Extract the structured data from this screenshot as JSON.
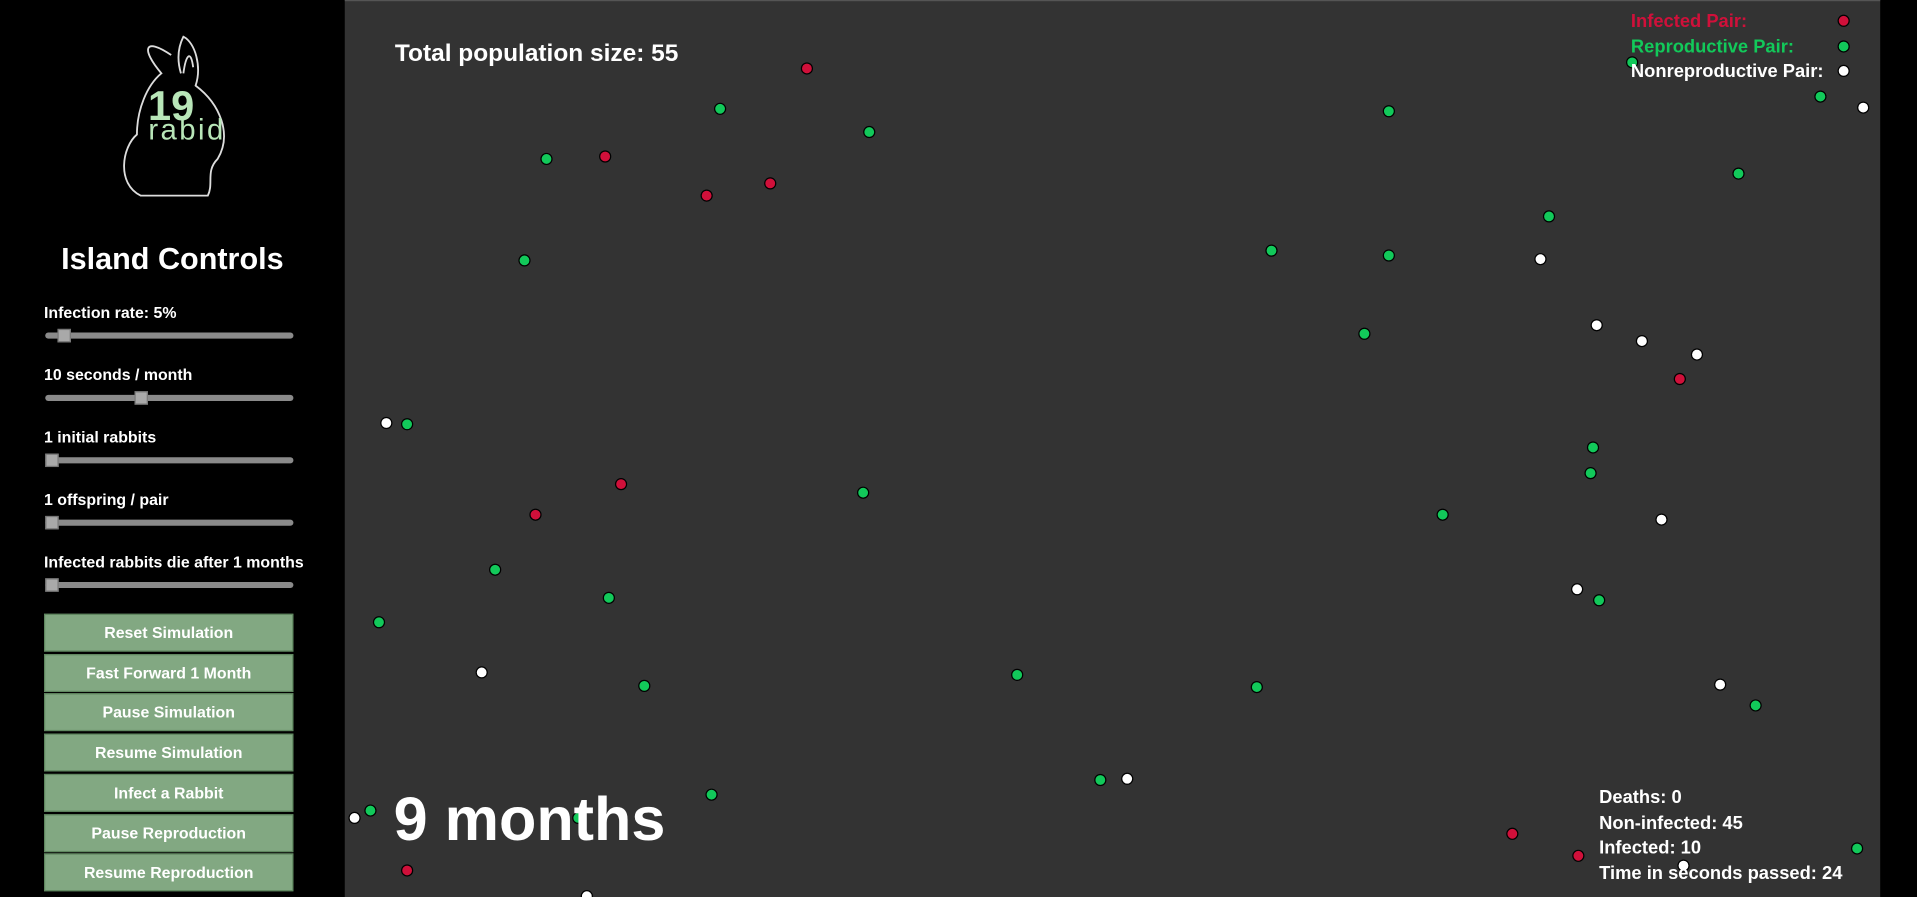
{
  "logo": {
    "number": "19",
    "word": "rabid"
  },
  "controls": {
    "title": "Island Controls",
    "sliders": [
      "Infection rate: 5%",
      "10 seconds / month",
      "1 initial rabbits",
      "1 offspring / pair",
      "Infected rabbits die after 1 months"
    ],
    "buttons": [
      "Reset Simulation",
      "Fast Forward 1 Month",
      "Pause Simulation",
      "Resume Simulation",
      "Infect a Rabbit",
      "Pause Reproduction",
      "Resume Reproduction"
    ]
  },
  "simulation": {
    "population": "Total population size: 55",
    "legend": [
      "Infected Pair:",
      "Reproductive Pair:",
      "Nonreproductive Pair:"
    ],
    "months": "9 months",
    "stats": [
      "Deaths: 0",
      "Non-infected: 45",
      "Infected: 10",
      "Time in seconds passed: 24"
    ]
  }
}
